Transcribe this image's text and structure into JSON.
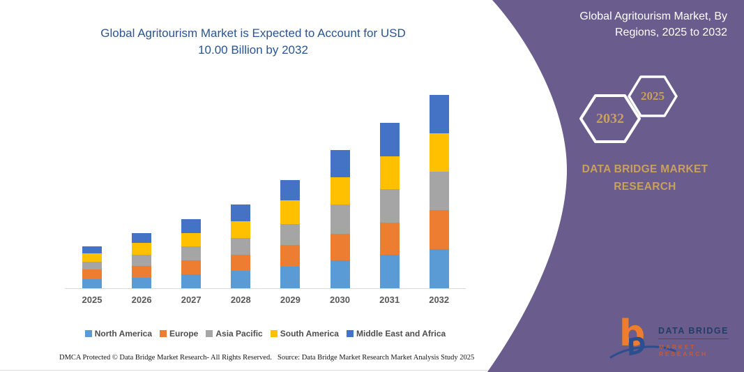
{
  "chart_panel": {
    "title": "Global Agritourism Market is Expected to Account for USD 10.00 Billion by 2032",
    "footer_left": "DMCA Protected © Data Bridge Market Research-  All Rights Reserved.",
    "footer_right": "Source: Data Bridge Market Research  Market Analysis Study 2025"
  },
  "chart_data": {
    "type": "bar",
    "stacked": true,
    "title": "Global Agritourism Market is Expected to Account for USD 10.00 Billion by 2032",
    "unit": "USD Billion",
    "categories": [
      "2025",
      "2026",
      "2027",
      "2028",
      "2029",
      "2030",
      "2031",
      "2032"
    ],
    "series": [
      {
        "name": "North America",
        "color": "#5b9bd5",
        "values": [
          0.48,
          0.56,
          0.72,
          0.9,
          1.11,
          1.43,
          1.73,
          2.03
        ]
      },
      {
        "name": "Europe",
        "color": "#ed7d31",
        "values": [
          0.48,
          0.6,
          0.72,
          0.84,
          1.14,
          1.4,
          1.67,
          2.03
        ]
      },
      {
        "name": "Asia Pacific",
        "color": "#a5a5a5",
        "values": [
          0.42,
          0.57,
          0.74,
          0.86,
          1.08,
          1.49,
          1.73,
          1.97
        ]
      },
      {
        "name": "South America",
        "color": "#ffc000",
        "values": [
          0.42,
          0.62,
          0.69,
          0.87,
          1.23,
          1.43,
          1.7,
          1.97
        ]
      },
      {
        "name": "Middle East and Africa",
        "color": "#4472c4",
        "values": [
          0.38,
          0.51,
          0.72,
          0.87,
          1.05,
          1.39,
          1.71,
          2.0
        ]
      }
    ],
    "totals": [
      2.18,
      2.86,
      3.59,
      4.34,
      5.61,
      7.14,
      8.54,
      10.0
    ],
    "ylim": [
      0,
      10
    ],
    "y_axis_visible": false,
    "gridlines": false,
    "legend_position": "bottom"
  },
  "sidebar": {
    "background_color": "#6a5c8c",
    "title": "Global Agritourism Market, By Regions, 2025 to 2032",
    "accent_text_color": "#c9a05c",
    "hexagons": [
      {
        "label": "2032"
      },
      {
        "label": "2025"
      }
    ],
    "brand_text": "DATA BRIDGE MARKET RESEARCH",
    "logo": {
      "monogram": "b",
      "d_glyph": "D",
      "name_line": "DATA BRIDGE",
      "tagline": "MARKET RESEARCH",
      "orange": "#ef7d2f",
      "blue": "#2b4f8e"
    }
  }
}
